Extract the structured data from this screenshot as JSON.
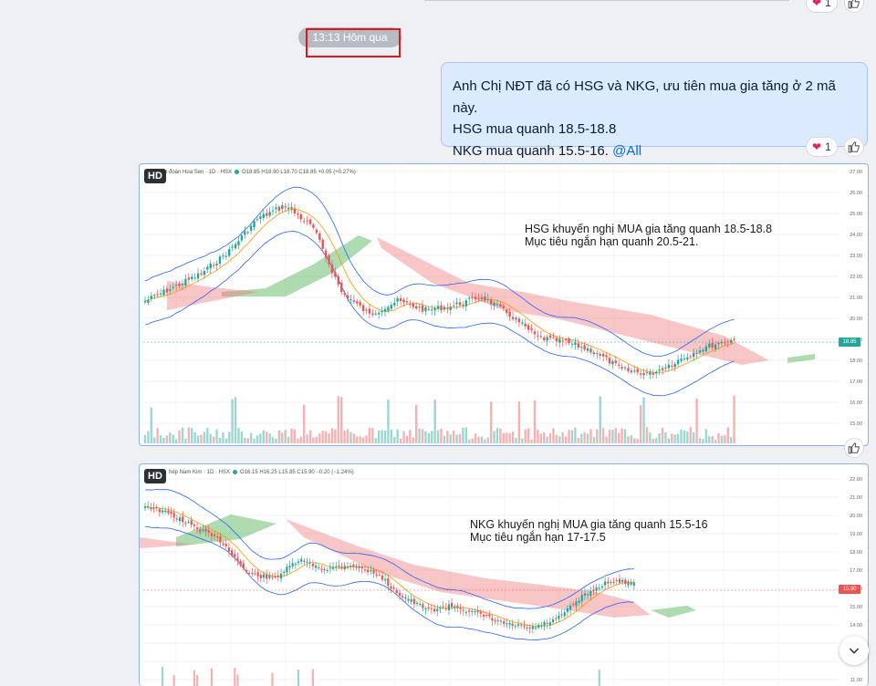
{
  "prev_message": {
    "reaction_count": "1"
  },
  "timestamp": "13:13 Hôm qua",
  "message": {
    "lines": [
      "Anh Chị NĐT đã có HSG và NKG, ưu tiên mua gia tăng ở 2 mã này.",
      "HSG mua quanh 18.5-18.8",
      "NKG mua quanh 15.5-16."
    ],
    "mention": "@All",
    "reaction_count": "1"
  },
  "images": [
    {
      "hd": "HD",
      "header": "Tập đoàn Hoa Sen · 1D · HSX",
      "ohlc": "O18.85 H18.90 L18.70 C18.85 +0.05 (+0.27%)",
      "note": "HSG khuyến nghị MUA gia tăng quanh 18.5-18.8\nMục tiêu ngắn hạn quanh 20.5-21.",
      "last_price": "18.85",
      "y_ticks": [
        "27.00",
        "26.00",
        "25.00",
        "24.00",
        "23.00",
        "22.00",
        "21.00",
        "20.00",
        "19.00",
        "18.00",
        "17.00",
        "16.00",
        "15.00"
      ]
    },
    {
      "hd": "HD",
      "header": "hép Nam Kim · 1D · HSX",
      "ohlc": "O16.15 H16.25 L15.85 C15.90 −0.20 (−1.24%)",
      "note": "NKG khuyến nghị MUA gia tăng quanh 15.5-16\nMục tiêu ngắn hạn 17-17.5",
      "last_price": "15.90",
      "y_ticks": [
        "22.00",
        "21.00",
        "20.00",
        "19.00",
        "18.00",
        "17.00",
        "16.00",
        "15.00",
        "14.00",
        "13.00",
        "12.00",
        "11.00"
      ]
    }
  ],
  "colors": {
    "up": "#26a69a",
    "down": "#ef5350",
    "accent": "#0068ff",
    "bubble": "#dbebfd"
  }
}
